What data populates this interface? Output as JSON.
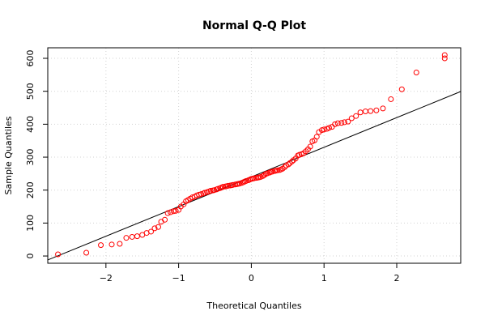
{
  "chart_data": {
    "type": "scatter",
    "title": "Normal Q-Q Plot",
    "xlabel": "Theoretical Quantiles",
    "ylabel": "Sample Quantiles",
    "xlim": [
      -2.8,
      2.88
    ],
    "ylim": [
      -22,
      632
    ],
    "x_ticks": [
      "-2",
      "-1",
      "0",
      "1",
      "2"
    ],
    "y_ticks": [
      "0",
      "100",
      "200",
      "300",
      "400",
      "500",
      "600"
    ],
    "grid": true,
    "point_color": "#ff0000",
    "line_color": "#000000",
    "reference_line": {
      "intercept": 240,
      "slope": 90
    },
    "series": [
      {
        "points": [
          [
            -2.66,
            5
          ],
          [
            -2.27,
            10
          ],
          [
            -2.07,
            33
          ],
          [
            -1.92,
            35
          ],
          [
            -1.81,
            37
          ],
          [
            -1.72,
            55
          ],
          [
            -1.64,
            58
          ],
          [
            -1.57,
            60
          ],
          [
            -1.5,
            64
          ],
          [
            -1.44,
            70
          ],
          [
            -1.38,
            74
          ],
          [
            -1.33,
            84
          ],
          [
            -1.28,
            88
          ],
          [
            -1.24,
            104
          ],
          [
            -1.19,
            110
          ],
          [
            -1.15,
            130
          ],
          [
            -1.11,
            133
          ],
          [
            -1.07,
            136
          ],
          [
            -1.04,
            137
          ],
          [
            -1.0,
            140
          ],
          [
            -0.97,
            150
          ],
          [
            -0.93,
            157
          ],
          [
            -0.9,
            166
          ],
          [
            -0.87,
            170
          ],
          [
            -0.84,
            174
          ],
          [
            -0.81,
            178
          ],
          [
            -0.78,
            180
          ],
          [
            -0.75,
            184
          ],
          [
            -0.72,
            186
          ],
          [
            -0.69,
            188
          ],
          [
            -0.66,
            190
          ],
          [
            -0.64,
            192
          ],
          [
            -0.61,
            194
          ],
          [
            -0.58,
            196
          ],
          [
            -0.56,
            198
          ],
          [
            -0.53,
            199
          ],
          [
            -0.51,
            200
          ],
          [
            -0.48,
            202
          ],
          [
            -0.46,
            204
          ],
          [
            -0.43,
            206
          ],
          [
            -0.41,
            208
          ],
          [
            -0.39,
            210
          ],
          [
            -0.36,
            211
          ],
          [
            -0.34,
            212
          ],
          [
            -0.32,
            213
          ],
          [
            -0.29,
            214
          ],
          [
            -0.27,
            215
          ],
          [
            -0.25,
            216
          ],
          [
            -0.22,
            217
          ],
          [
            -0.2,
            218
          ],
          [
            -0.18,
            219
          ],
          [
            -0.16,
            220
          ],
          [
            -0.13,
            222
          ],
          [
            -0.11,
            224
          ],
          [
            -0.09,
            226
          ],
          [
            -0.07,
            228
          ],
          [
            -0.04,
            230
          ],
          [
            -0.02,
            232
          ],
          [
            0.0,
            234
          ],
          [
            0.02,
            235
          ],
          [
            0.04,
            236
          ],
          [
            0.07,
            237
          ],
          [
            0.09,
            238
          ],
          [
            0.11,
            239
          ],
          [
            0.13,
            240
          ],
          [
            0.16,
            243
          ],
          [
            0.18,
            246
          ],
          [
            0.2,
            249
          ],
          [
            0.22,
            251
          ],
          [
            0.25,
            253
          ],
          [
            0.27,
            255
          ],
          [
            0.29,
            256
          ],
          [
            0.32,
            258
          ],
          [
            0.34,
            259
          ],
          [
            0.36,
            260
          ],
          [
            0.39,
            261
          ],
          [
            0.41,
            263
          ],
          [
            0.43,
            265
          ],
          [
            0.46,
            270
          ],
          [
            0.48,
            275
          ],
          [
            0.51,
            278
          ],
          [
            0.53,
            282
          ],
          [
            0.56,
            287
          ],
          [
            0.58,
            291
          ],
          [
            0.61,
            296
          ],
          [
            0.64,
            305
          ],
          [
            0.66,
            307
          ],
          [
            0.69,
            309
          ],
          [
            0.72,
            312
          ],
          [
            0.75,
            318
          ],
          [
            0.78,
            324
          ],
          [
            0.81,
            332
          ],
          [
            0.84,
            348
          ],
          [
            0.87,
            351
          ],
          [
            0.9,
            362
          ],
          [
            0.93,
            376
          ],
          [
            0.97,
            382
          ],
          [
            1.0,
            384
          ],
          [
            1.04,
            386
          ],
          [
            1.07,
            389
          ],
          [
            1.11,
            392
          ],
          [
            1.15,
            400
          ],
          [
            1.19,
            403
          ],
          [
            1.24,
            404
          ],
          [
            1.28,
            406
          ],
          [
            1.33,
            408
          ],
          [
            1.38,
            418
          ],
          [
            1.44,
            425
          ],
          [
            1.5,
            436
          ],
          [
            1.57,
            439
          ],
          [
            1.64,
            440
          ],
          [
            1.72,
            442
          ],
          [
            1.81,
            448
          ],
          [
            1.92,
            476
          ],
          [
            2.07,
            506
          ],
          [
            2.27,
            557
          ],
          [
            2.66,
            600
          ],
          [
            2.66,
            610
          ]
        ]
      }
    ]
  }
}
